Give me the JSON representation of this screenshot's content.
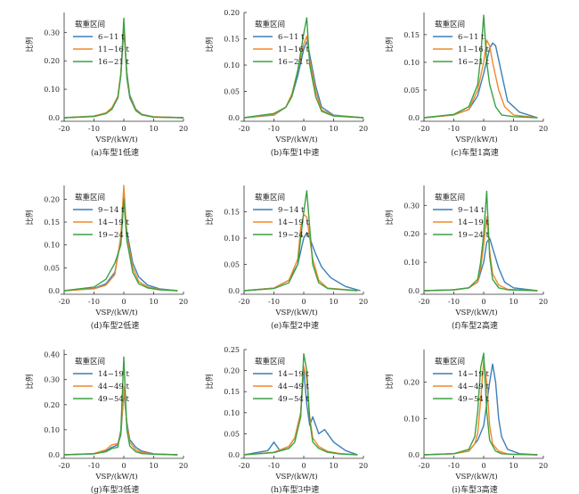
{
  "legend_title": "载重区间",
  "xlabel": "VSP/(kW/t)",
  "ylabel": "比例",
  "colors": [
    "#3b7fb8",
    "#f0892a",
    "#3aa142"
  ],
  "chart_data": [
    {
      "type": "line",
      "caption": "(a)车型1低速",
      "xlim": [
        -20,
        20
      ],
      "ylim": [
        0,
        0.37
      ],
      "xticks": [
        -20,
        -10,
        0,
        10,
        20
      ],
      "yticks": [
        0,
        0.1,
        0.2,
        0.3
      ],
      "series": [
        {
          "name": "6~11 t",
          "x": [
            -20,
            -10,
            -6,
            -4,
            -2,
            -1,
            0,
            1,
            2,
            4,
            6,
            10,
            20
          ],
          "y": [
            0,
            0.005,
            0.015,
            0.03,
            0.07,
            0.15,
            0.31,
            0.16,
            0.08,
            0.03,
            0.012,
            0.003,
            0
          ]
        },
        {
          "name": "11~16 t",
          "x": [
            -20,
            -10,
            -6,
            -4,
            -2,
            -1,
            0,
            1,
            2,
            4,
            6,
            10,
            20
          ],
          "y": [
            0,
            0.006,
            0.017,
            0.035,
            0.075,
            0.16,
            0.32,
            0.15,
            0.075,
            0.028,
            0.011,
            0.003,
            0
          ]
        },
        {
          "name": "16~21 t",
          "x": [
            -20,
            -10,
            -6,
            -4,
            -2,
            -1,
            0,
            1,
            2,
            4,
            6,
            10,
            20
          ],
          "y": [
            0,
            0.004,
            0.014,
            0.03,
            0.07,
            0.15,
            0.35,
            0.14,
            0.07,
            0.025,
            0.01,
            0.002,
            0
          ]
        }
      ]
    },
    {
      "type": "line",
      "caption": "(b)车型1中速",
      "xlim": [
        -20,
        20
      ],
      "ylim": [
        0,
        0.2
      ],
      "xticks": [
        -20,
        -10,
        0,
        10,
        20
      ],
      "yticks": [
        0,
        0.05,
        0.1,
        0.15,
        0.2
      ],
      "series": [
        {
          "name": "6~11 t",
          "x": [
            -20,
            -10,
            -6,
            -4,
            -2,
            0,
            1,
            2,
            4,
            6,
            10,
            20
          ],
          "y": [
            0,
            0.005,
            0.02,
            0.04,
            0.08,
            0.13,
            0.145,
            0.12,
            0.06,
            0.02,
            0.005,
            0
          ]
        },
        {
          "name": "11~16 t",
          "x": [
            -20,
            -10,
            -6,
            -4,
            -2,
            0,
            1,
            2,
            4,
            6,
            10,
            20
          ],
          "y": [
            0,
            0.006,
            0.02,
            0.045,
            0.09,
            0.14,
            0.155,
            0.11,
            0.05,
            0.015,
            0.004,
            0
          ]
        },
        {
          "name": "16~21 t",
          "x": [
            -20,
            -10,
            -6,
            -4,
            -2,
            0,
            1,
            2,
            4,
            6,
            10,
            20
          ],
          "y": [
            0,
            0.008,
            0.02,
            0.04,
            0.09,
            0.16,
            0.19,
            0.1,
            0.04,
            0.012,
            0.003,
            0
          ]
        }
      ]
    },
    {
      "type": "line",
      "caption": "(c)车型1高速",
      "xlim": [
        -20,
        20
      ],
      "ylim": [
        0,
        0.19
      ],
      "xticks": [
        -20,
        -10,
        0,
        10,
        20
      ],
      "yticks": [
        0,
        0.05,
        0.1,
        0.15
      ],
      "series": [
        {
          "name": "6~11 t",
          "x": [
            -20,
            -10,
            -5,
            -2,
            0,
            2,
            3,
            4,
            6,
            8,
            12,
            18
          ],
          "y": [
            0,
            0.005,
            0.015,
            0.04,
            0.08,
            0.125,
            0.135,
            0.13,
            0.08,
            0.03,
            0.01,
            0
          ]
        },
        {
          "name": "11~16 t",
          "x": [
            -20,
            -10,
            -5,
            -2,
            0,
            1,
            2,
            3,
            5,
            7,
            10,
            18
          ],
          "y": [
            0,
            0.005,
            0.015,
            0.05,
            0.1,
            0.14,
            0.13,
            0.1,
            0.05,
            0.02,
            0.005,
            0
          ]
        },
        {
          "name": "16~21 t",
          "x": [
            -20,
            -10,
            -5,
            -2,
            -1,
            0,
            1,
            2,
            4,
            6,
            10,
            18
          ],
          "y": [
            0,
            0.006,
            0.02,
            0.06,
            0.11,
            0.185,
            0.1,
            0.06,
            0.02,
            0.005,
            0.002,
            0
          ]
        }
      ]
    },
    {
      "type": "line",
      "caption": "(d)车型2低速",
      "xlim": [
        -20,
        20
      ],
      "ylim": [
        0,
        0.23
      ],
      "xticks": [
        -20,
        -10,
        0,
        10,
        20
      ],
      "yticks": [
        0,
        0.05,
        0.1,
        0.15,
        0.2
      ],
      "series": [
        {
          "name": "9~14 t",
          "x": [
            -20,
            -10,
            -6,
            -3,
            -1,
            0,
            1,
            3,
            5,
            8,
            12,
            18
          ],
          "y": [
            0,
            0.005,
            0.015,
            0.04,
            0.11,
            0.205,
            0.13,
            0.06,
            0.03,
            0.012,
            0.004,
            0
          ]
        },
        {
          "name": "14~19 t",
          "x": [
            -20,
            -10,
            -6,
            -3,
            -1,
            0,
            1,
            3,
            5,
            8,
            12,
            18
          ],
          "y": [
            0,
            0.004,
            0.012,
            0.035,
            0.12,
            0.23,
            0.12,
            0.05,
            0.02,
            0.008,
            0.003,
            0
          ]
        },
        {
          "name": "19~24 t",
          "x": [
            -20,
            -10,
            -6,
            -3,
            -1,
            0,
            1,
            3,
            5,
            8,
            12,
            18
          ],
          "y": [
            0,
            0.008,
            0.025,
            0.06,
            0.1,
            0.2,
            0.11,
            0.04,
            0.015,
            0.006,
            0.002,
            0
          ]
        }
      ]
    },
    {
      "type": "line",
      "caption": "(e)车型2中速",
      "xlim": [
        -20,
        20
      ],
      "ylim": [
        0,
        0.2
      ],
      "xticks": [
        -20,
        -10,
        0,
        10,
        20
      ],
      "yticks": [
        0,
        0.05,
        0.1,
        0.15
      ],
      "series": [
        {
          "name": "9~14 t",
          "x": [
            -20,
            -10,
            -5,
            -2,
            0,
            1,
            2,
            4,
            6,
            9,
            14,
            19
          ],
          "y": [
            0,
            0.005,
            0.02,
            0.05,
            0.1,
            0.11,
            0.1,
            0.07,
            0.045,
            0.025,
            0.008,
            0
          ]
        },
        {
          "name": "14~19 t",
          "x": [
            -20,
            -10,
            -5,
            -2,
            -1,
            0,
            1,
            2,
            3,
            5,
            8,
            18
          ],
          "y": [
            0,
            0.005,
            0.02,
            0.06,
            0.12,
            0.145,
            0.14,
            0.1,
            0.06,
            0.02,
            0.005,
            0
          ]
        },
        {
          "name": "19~24 t",
          "x": [
            -20,
            -10,
            -5,
            -2,
            -1,
            0,
            1,
            2,
            3,
            5,
            8,
            18
          ],
          "y": [
            0,
            0.004,
            0.015,
            0.05,
            0.1,
            0.15,
            0.19,
            0.12,
            0.05,
            0.015,
            0.004,
            0
          ]
        }
      ]
    },
    {
      "type": "line",
      "caption": "(f)车型2高速",
      "xlim": [
        -20,
        20
      ],
      "ylim": [
        0,
        0.37
      ],
      "xticks": [
        -20,
        -10,
        0,
        10,
        20
      ],
      "yticks": [
        0,
        0.1,
        0.2,
        0.3
      ],
      "series": [
        {
          "name": "9~14 t",
          "x": [
            -20,
            -10,
            -5,
            -2,
            0,
            1,
            2,
            3,
            5,
            7,
            10,
            18
          ],
          "y": [
            0,
            0.003,
            0.01,
            0.03,
            0.1,
            0.17,
            0.185,
            0.15,
            0.08,
            0.03,
            0.01,
            0
          ]
        },
        {
          "name": "14~19 t",
          "x": [
            -20,
            -10,
            -5,
            -2,
            -1,
            0,
            1,
            2,
            3,
            5,
            8,
            18
          ],
          "y": [
            0,
            0.003,
            0.01,
            0.03,
            0.08,
            0.16,
            0.26,
            0.14,
            0.06,
            0.02,
            0.005,
            0
          ]
        },
        {
          "name": "19~24 t",
          "x": [
            -20,
            -10,
            -5,
            -2,
            -1,
            0,
            1,
            2,
            3,
            5,
            8,
            18
          ],
          "y": [
            0,
            0.003,
            0.01,
            0.04,
            0.1,
            0.2,
            0.35,
            0.12,
            0.04,
            0.01,
            0.003,
            0
          ]
        }
      ]
    },
    {
      "type": "line",
      "caption": "(g)车型3低速",
      "xlim": [
        -20,
        20
      ],
      "ylim": [
        0,
        0.42
      ],
      "xticks": [
        -20,
        -10,
        0,
        10,
        20
      ],
      "yticks": [
        0,
        0.1,
        0.2,
        0.3,
        0.4
      ],
      "series": [
        {
          "name": "14~19 t",
          "x": [
            -20,
            -10,
            -6,
            -4,
            -2,
            -1,
            0,
            1,
            2,
            4,
            6,
            10,
            18
          ],
          "y": [
            0,
            0.004,
            0.015,
            0.03,
            0.04,
            0.08,
            0.25,
            0.13,
            0.06,
            0.03,
            0.015,
            0.004,
            0
          ]
        },
        {
          "name": "44~49 t",
          "x": [
            -20,
            -10,
            -6,
            -4,
            -2,
            -1,
            0,
            1,
            2,
            4,
            6,
            10,
            18
          ],
          "y": [
            0,
            0.005,
            0.02,
            0.04,
            0.045,
            0.09,
            0.27,
            0.12,
            0.05,
            0.02,
            0.01,
            0.003,
            0
          ]
        },
        {
          "name": "49~54 t",
          "x": [
            -20,
            -10,
            -6,
            -4,
            -2,
            -1,
            0,
            1,
            2,
            4,
            6,
            10,
            18
          ],
          "y": [
            0,
            0.004,
            0.012,
            0.025,
            0.03,
            0.1,
            0.39,
            0.1,
            0.035,
            0.012,
            0.005,
            0.002,
            0
          ]
        }
      ]
    },
    {
      "type": "line",
      "caption": "(h)车型3中速",
      "xlim": [
        -20,
        20
      ],
      "ylim": [
        0,
        0.25
      ],
      "xticks": [
        -20,
        -10,
        0,
        10,
        20
      ],
      "yticks": [
        0,
        0.05,
        0.1,
        0.15,
        0.2,
        0.25
      ],
      "series": [
        {
          "name": "14~19 t",
          "x": [
            -20,
            -12,
            -10,
            -8,
            -5,
            -3,
            -1,
            0,
            1,
            2,
            3,
            5,
            7,
            10,
            14,
            18
          ],
          "y": [
            0,
            0.01,
            0.03,
            0.01,
            0.02,
            0.04,
            0.1,
            0.2,
            0.12,
            0.07,
            0.09,
            0.05,
            0.06,
            0.03,
            0.01,
            0
          ]
        },
        {
          "name": "44~49 t",
          "x": [
            -20,
            -10,
            -5,
            -3,
            -1,
            0,
            1,
            2,
            3,
            5,
            8,
            12,
            18
          ],
          "y": [
            0,
            0.006,
            0.02,
            0.04,
            0.1,
            0.21,
            0.18,
            0.09,
            0.04,
            0.02,
            0.008,
            0.003,
            0
          ]
        },
        {
          "name": "49~54 t",
          "x": [
            -20,
            -10,
            -5,
            -3,
            -1,
            0,
            1,
            2,
            3,
            5,
            8,
            12,
            18
          ],
          "y": [
            0,
            0.005,
            0.015,
            0.03,
            0.09,
            0.24,
            0.2,
            0.08,
            0.03,
            0.015,
            0.006,
            0.002,
            0
          ]
        }
      ]
    },
    {
      "type": "line",
      "caption": "(i)车型3高速",
      "xlim": [
        -20,
        20
      ],
      "ylim": [
        0,
        0.29
      ],
      "xticks": [
        -20,
        -10,
        0,
        10,
        20
      ],
      "yticks": [
        0,
        0.1,
        0.2
      ],
      "series": [
        {
          "name": "14~19 t",
          "x": [
            -20,
            -10,
            -5,
            -2,
            0,
            2,
            3,
            4,
            5,
            6,
            8,
            12,
            18
          ],
          "y": [
            0,
            0.003,
            0.01,
            0.04,
            0.08,
            0.2,
            0.25,
            0.2,
            0.1,
            0.05,
            0.015,
            0.003,
            0
          ]
        },
        {
          "name": "44~49 t",
          "x": [
            -20,
            -10,
            -5,
            -3,
            -2,
            -1,
            0,
            1,
            2,
            3,
            5,
            8,
            18
          ],
          "y": [
            0,
            0.003,
            0.01,
            0.03,
            0.06,
            0.15,
            0.26,
            0.2,
            0.08,
            0.03,
            0.01,
            0.002,
            0
          ]
        },
        {
          "name": "49~54 t",
          "x": [
            -20,
            -10,
            -5,
            -3,
            -2,
            -1,
            0,
            1,
            2,
            4,
            6,
            10,
            18
          ],
          "y": [
            0,
            0.003,
            0.015,
            0.05,
            0.12,
            0.24,
            0.28,
            0.12,
            0.04,
            0.01,
            0.003,
            0.001,
            0
          ]
        }
      ]
    }
  ]
}
